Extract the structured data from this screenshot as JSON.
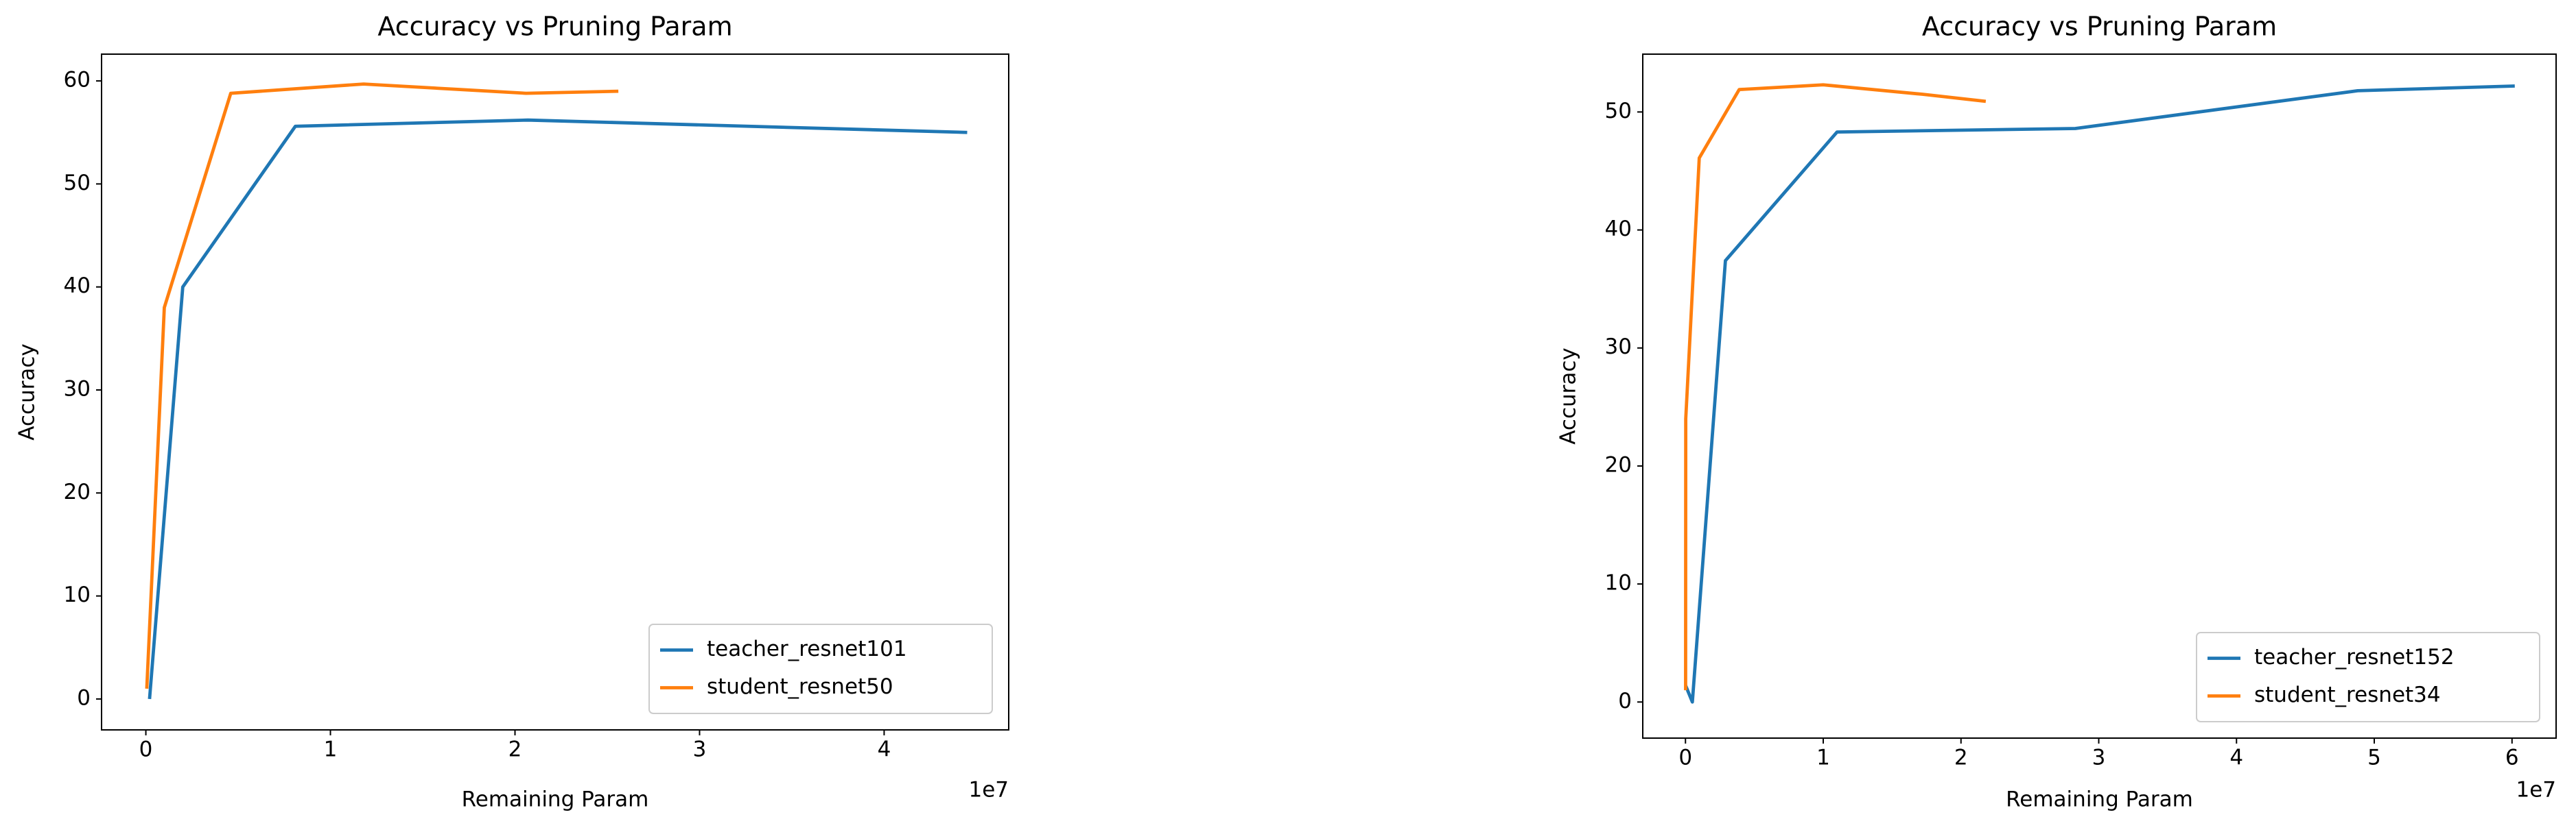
{
  "chart_data": [
    {
      "type": "line",
      "title": "Accuracy vs Pruning Param",
      "xlabel": "Remaining Param",
      "ylabel": "Accuracy",
      "x_offset_label": "1e7",
      "xlim": [
        -2400000,
        46750000
      ],
      "ylim": [
        -3.0,
        62.6
      ],
      "xticks": [
        0,
        {
          "value": 10000000,
          "label": "1"
        },
        {
          "value": 20000000,
          "label": "2"
        },
        {
          "value": 30000000,
          "label": "3"
        },
        {
          "value": 40000000,
          "label": "4"
        }
      ],
      "yticks": [
        0,
        10,
        20,
        30,
        40,
        50,
        60
      ],
      "legend": "lower right",
      "series": [
        {
          "name": "teacher_resnet101",
          "color": "#1f77b4",
          "x": [
            200000,
            2000000,
            8100000,
            20700000,
            44500000
          ],
          "values": [
            0,
            40,
            55.6,
            56.2,
            55.0
          ]
        },
        {
          "name": "student_resnet50",
          "color": "#ff7f0e",
          "x": [
            50000,
            1000000,
            4600000,
            11800000,
            20600000,
            25600000
          ],
          "values": [
            1,
            38,
            58.8,
            59.7,
            58.8,
            59.0
          ]
        }
      ]
    },
    {
      "type": "line",
      "title": "Accuracy vs Pruning Param",
      "xlabel": "Remaining Param",
      "ylabel": "Accuracy",
      "x_offset_label": "1e7",
      "xlim": [
        -3100000,
        63200000
      ],
      "ylim": [
        -3.06,
        54.9
      ],
      "xticks": [
        0,
        {
          "value": 10000000,
          "label": "1"
        },
        {
          "value": 20000000,
          "label": "2"
        },
        {
          "value": 30000000,
          "label": "3"
        },
        {
          "value": 40000000,
          "label": "4"
        },
        {
          "value": 50000000,
          "label": "5"
        },
        {
          "value": 60000000,
          "label": "6"
        }
      ],
      "yticks": [
        0,
        10,
        20,
        30,
        40,
        50
      ],
      "legend": "lower right",
      "series": [
        {
          "name": "teacher_resnet152",
          "color": "#1f77b4",
          "x": [
            10000,
            500000,
            2900000,
            11000000,
            28300000,
            48800000,
            60200000
          ],
          "values": [
            1.4,
            0,
            37.4,
            48.3,
            48.6,
            51.8,
            52.2
          ]
        },
        {
          "name": "student_resnet34",
          "color": "#ff7f0e",
          "x": [
            10000,
            20000,
            1000000,
            3900000,
            10000000,
            17200000,
            21800000
          ],
          "values": [
            1,
            24,
            46.1,
            51.9,
            52.3,
            51.5,
            50.9
          ]
        }
      ]
    }
  ]
}
